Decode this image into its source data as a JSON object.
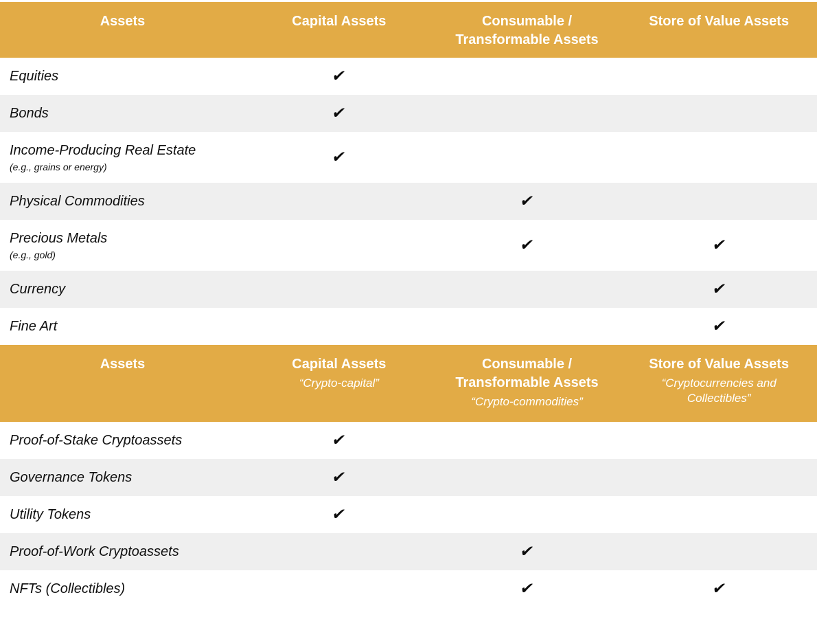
{
  "colors": {
    "header_bg": "#E2AB46",
    "header_text": "#FFFFFF",
    "row_bg": "#FFFFFF",
    "row_alt_bg": "#EFEFEF",
    "text": "#101010"
  },
  "check_glyph": "✔",
  "sections": [
    {
      "headers": [
        {
          "title": "Assets",
          "subtitle": ""
        },
        {
          "title": "Capital Assets",
          "subtitle": ""
        },
        {
          "title": "Consumable /\nTransformable Assets",
          "subtitle": ""
        },
        {
          "title": "Store of Value Assets",
          "subtitle": ""
        }
      ],
      "rows": [
        {
          "label": "Equities",
          "note": "",
          "checks": [
            true,
            false,
            false
          ]
        },
        {
          "label": "Bonds",
          "note": "",
          "checks": [
            true,
            false,
            false
          ]
        },
        {
          "label": "Income-Producing Real Estate",
          "note": "(e.g., grains or energy)",
          "checks": [
            true,
            false,
            false
          ]
        },
        {
          "label": "Physical Commodities",
          "note": "",
          "checks": [
            false,
            true,
            false
          ]
        },
        {
          "label": "Precious Metals",
          "note": "(e.g., gold)",
          "checks": [
            false,
            true,
            true
          ]
        },
        {
          "label": "Currency",
          "note": "",
          "checks": [
            false,
            false,
            true
          ]
        },
        {
          "label": "Fine Art",
          "note": "",
          "checks": [
            false,
            false,
            true
          ]
        }
      ]
    },
    {
      "headers": [
        {
          "title": "Assets",
          "subtitle": ""
        },
        {
          "title": "Capital Assets",
          "subtitle": "“Crypto-capital”"
        },
        {
          "title": "Consumable /\nTransformable Assets",
          "subtitle": "“Crypto-commodities”"
        },
        {
          "title": "Store of Value Assets",
          "subtitle": "“Cryptocurrencies and\nCollectibles”"
        }
      ],
      "rows": [
        {
          "label": "Proof-of-Stake Cryptoassets",
          "note": "",
          "checks": [
            true,
            false,
            false
          ]
        },
        {
          "label": "Governance Tokens",
          "note": "",
          "checks": [
            true,
            false,
            false
          ]
        },
        {
          "label": "Utility Tokens",
          "note": "",
          "checks": [
            true,
            false,
            false
          ]
        },
        {
          "label": "Proof-of-Work Cryptoassets",
          "note": "",
          "checks": [
            false,
            true,
            false
          ]
        },
        {
          "label": "NFTs (Collectibles)",
          "note": "",
          "checks": [
            false,
            true,
            true
          ]
        }
      ]
    }
  ],
  "chart_data": [
    {
      "type": "table",
      "title": "Traditional asset superclasses",
      "columns": [
        "Assets",
        "Capital Assets",
        "Consumable / Transformable Assets",
        "Store of Value Assets"
      ],
      "rows": [
        [
          "Equities",
          "✔",
          "",
          ""
        ],
        [
          "Bonds",
          "✔",
          "",
          ""
        ],
        [
          "Income-Producing Real Estate (e.g., grains or energy)",
          "✔",
          "",
          ""
        ],
        [
          "Physical Commodities",
          "",
          "✔",
          ""
        ],
        [
          "Precious Metals (e.g., gold)",
          "",
          "✔",
          "✔"
        ],
        [
          "Currency",
          "",
          "",
          "✔"
        ],
        [
          "Fine Art",
          "",
          "",
          "✔"
        ]
      ]
    },
    {
      "type": "table",
      "title": "Cryptoasset superclasses",
      "columns": [
        "Assets",
        "Capital Assets “Crypto-capital”",
        "Consumable / Transformable Assets “Crypto-commodities”",
        "Store of Value Assets “Cryptocurrencies and Collectibles”"
      ],
      "rows": [
        [
          "Proof-of-Stake Cryptoassets",
          "✔",
          "",
          ""
        ],
        [
          "Governance Tokens",
          "✔",
          "",
          ""
        ],
        [
          "Utility Tokens",
          "✔",
          "",
          ""
        ],
        [
          "Proof-of-Work Cryptoassets",
          "",
          "✔",
          ""
        ],
        [
          "NFTs (Collectibles)",
          "",
          "✔",
          "✔"
        ]
      ]
    }
  ]
}
